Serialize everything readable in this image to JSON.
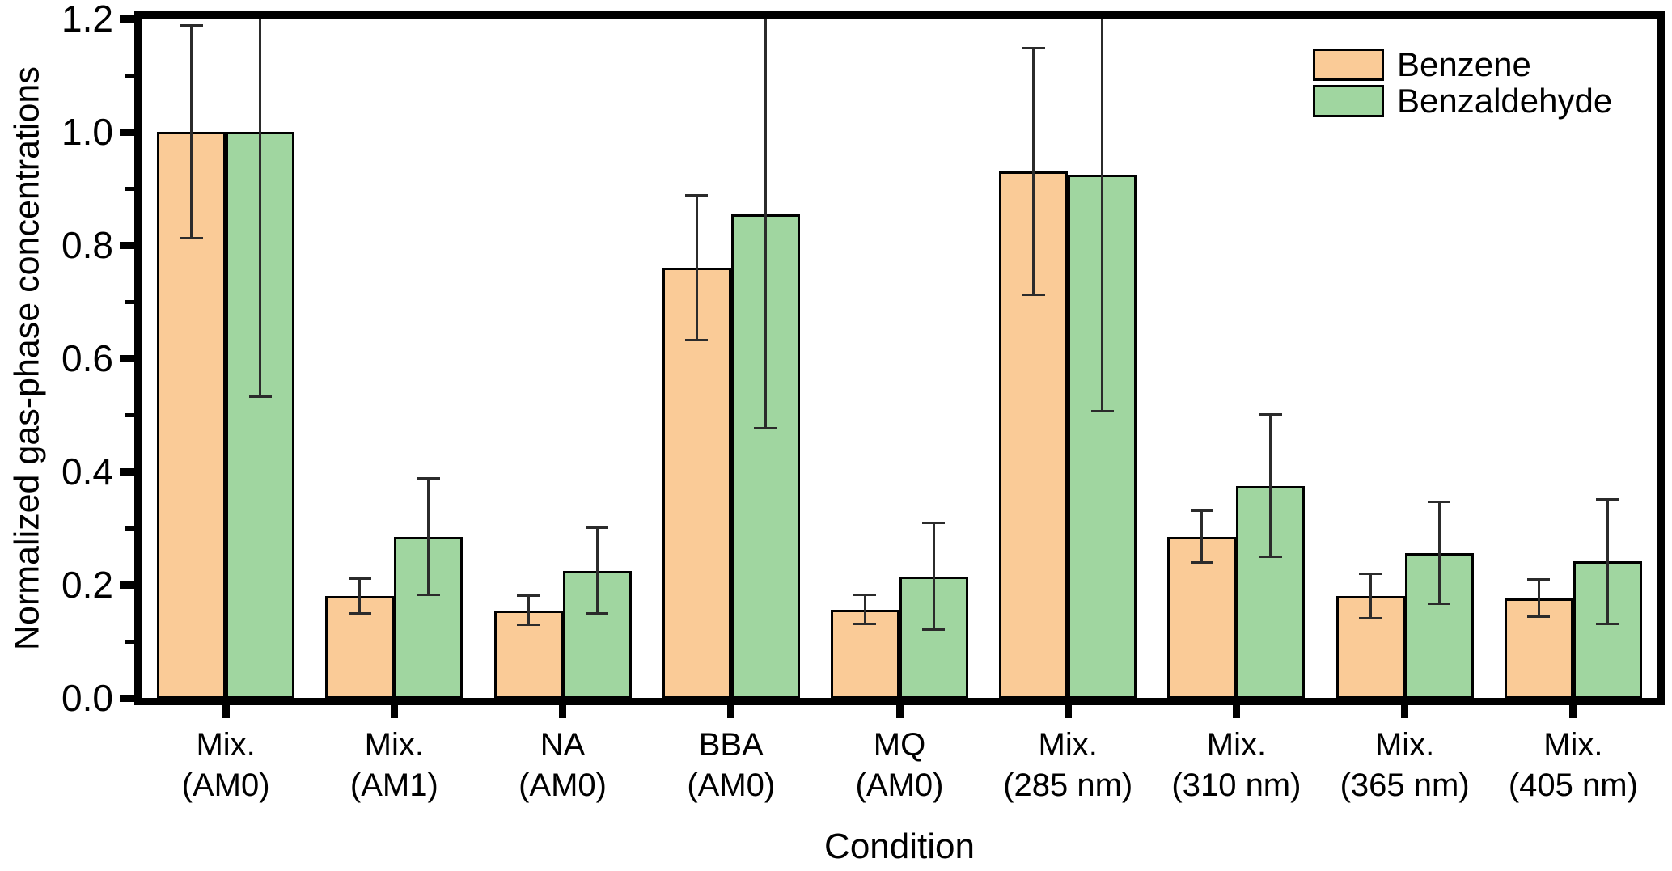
{
  "chart_data": {
    "type": "bar",
    "title": "",
    "xlabel": "Condition",
    "ylabel": "Normalized gas-phase concentrations",
    "ylim": [
      0,
      1.2
    ],
    "yticks": [
      0.0,
      0.2,
      0.4,
      0.6,
      0.8,
      1.0,
      1.2
    ],
    "ytick_labels": [
      "0.0",
      "0.2",
      "0.4",
      "0.6",
      "0.8",
      "1.0",
      "1.2"
    ],
    "minor_yticks": [
      0.1,
      0.3,
      0.5,
      0.7,
      0.9,
      1.1
    ],
    "grid": false,
    "legend_position": "top-right",
    "categories": [
      {
        "line1": "Mix.",
        "line2": "(AM0)"
      },
      {
        "line1": "Mix.",
        "line2": "(AM1)"
      },
      {
        "line1": "NA",
        "line2": "(AM0)"
      },
      {
        "line1": "BBA",
        "line2": "(AM0)"
      },
      {
        "line1": "MQ",
        "line2": "(AM0)"
      },
      {
        "line1": "Mix.",
        "line2": "(285 nm)"
      },
      {
        "line1": "Mix.",
        "line2": "(310 nm)"
      },
      {
        "line1": "Mix.",
        "line2": "(365 nm)"
      },
      {
        "line1": "Mix.",
        "line2": "(405 nm)"
      }
    ],
    "series": [
      {
        "name": "Benzene",
        "color": "#FACB97",
        "values": [
          1.0,
          0.18,
          0.155,
          0.76,
          0.156,
          0.93,
          0.285,
          0.18,
          0.176
        ],
        "errors": [
          0.19,
          0.033,
          0.028,
          0.13,
          0.028,
          0.22,
          0.048,
          0.042,
          0.035
        ]
      },
      {
        "name": "Benzaldehyde",
        "color": "#A0D6A0",
        "values": [
          1.0,
          0.285,
          0.225,
          0.855,
          0.215,
          0.925,
          0.375,
          0.256,
          0.241
        ],
        "errors": [
          0.47,
          0.105,
          0.078,
          0.38,
          0.096,
          0.42,
          0.128,
          0.092,
          0.112
        ]
      }
    ],
    "colors": {
      "axis": "#000000",
      "error_bar": "#2B2B2B",
      "background": "#FFFFFF"
    }
  }
}
